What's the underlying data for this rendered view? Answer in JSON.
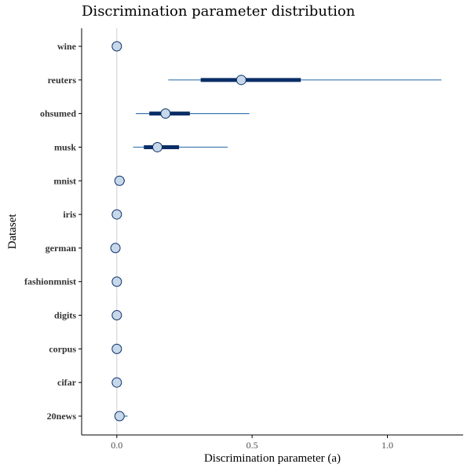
{
  "chart_data": {
    "type": "interval",
    "title": "Discrimination parameter distribution",
    "xlabel": "Discrimination parameter (a)",
    "ylabel": "Dataset",
    "xlim": [
      -0.13,
      1.28
    ],
    "xticks": [
      0.0,
      0.5,
      1.0
    ],
    "xtick_labels": [
      "0.0",
      "0.5",
      "1.0"
    ],
    "reference_line_x": 0.0,
    "colors": {
      "thick_interval": "#0a2e66",
      "thin_interval": "#3a78b0",
      "point_fill": "#c6d8ea",
      "point_stroke": "#0a2e66",
      "reference_line": "#d0d0d0"
    },
    "series": [
      {
        "dataset": "wine",
        "point": 0.0,
        "inner": [
          0.0,
          0.0
        ],
        "outer": [
          0.0,
          0.0
        ]
      },
      {
        "dataset": "reuters",
        "point": 0.46,
        "inner": [
          0.31,
          0.68
        ],
        "outer": [
          0.19,
          1.2
        ]
      },
      {
        "dataset": "ohsumed",
        "point": 0.18,
        "inner": [
          0.12,
          0.27
        ],
        "outer": [
          0.07,
          0.49
        ]
      },
      {
        "dataset": "musk",
        "point": 0.15,
        "inner": [
          0.1,
          0.23
        ],
        "outer": [
          0.06,
          0.41
        ]
      },
      {
        "dataset": "mnist",
        "point": 0.01,
        "inner": [
          0.0,
          0.02
        ],
        "outer": [
          0.0,
          0.03
        ]
      },
      {
        "dataset": "iris",
        "point": 0.0,
        "inner": [
          0.0,
          0.0
        ],
        "outer": [
          0.0,
          0.0
        ]
      },
      {
        "dataset": "german",
        "point": -0.005,
        "inner": [
          -0.005,
          -0.005
        ],
        "outer": [
          -0.005,
          -0.005
        ]
      },
      {
        "dataset": "fashionmnist",
        "point": 0.0,
        "inner": [
          0.0,
          0.0
        ],
        "outer": [
          0.0,
          0.0
        ]
      },
      {
        "dataset": "digits",
        "point": 0.0,
        "inner": [
          0.0,
          0.0
        ],
        "outer": [
          0.0,
          0.0
        ]
      },
      {
        "dataset": "corpus",
        "point": 0.0,
        "inner": [
          0.0,
          0.0
        ],
        "outer": [
          0.0,
          0.0
        ]
      },
      {
        "dataset": "cifar",
        "point": 0.0,
        "inner": [
          0.0,
          0.0
        ],
        "outer": [
          0.0,
          0.0
        ]
      },
      {
        "dataset": "20news",
        "point": 0.01,
        "inner": [
          0.0,
          0.02
        ],
        "outer": [
          0.0,
          0.04
        ]
      }
    ]
  }
}
